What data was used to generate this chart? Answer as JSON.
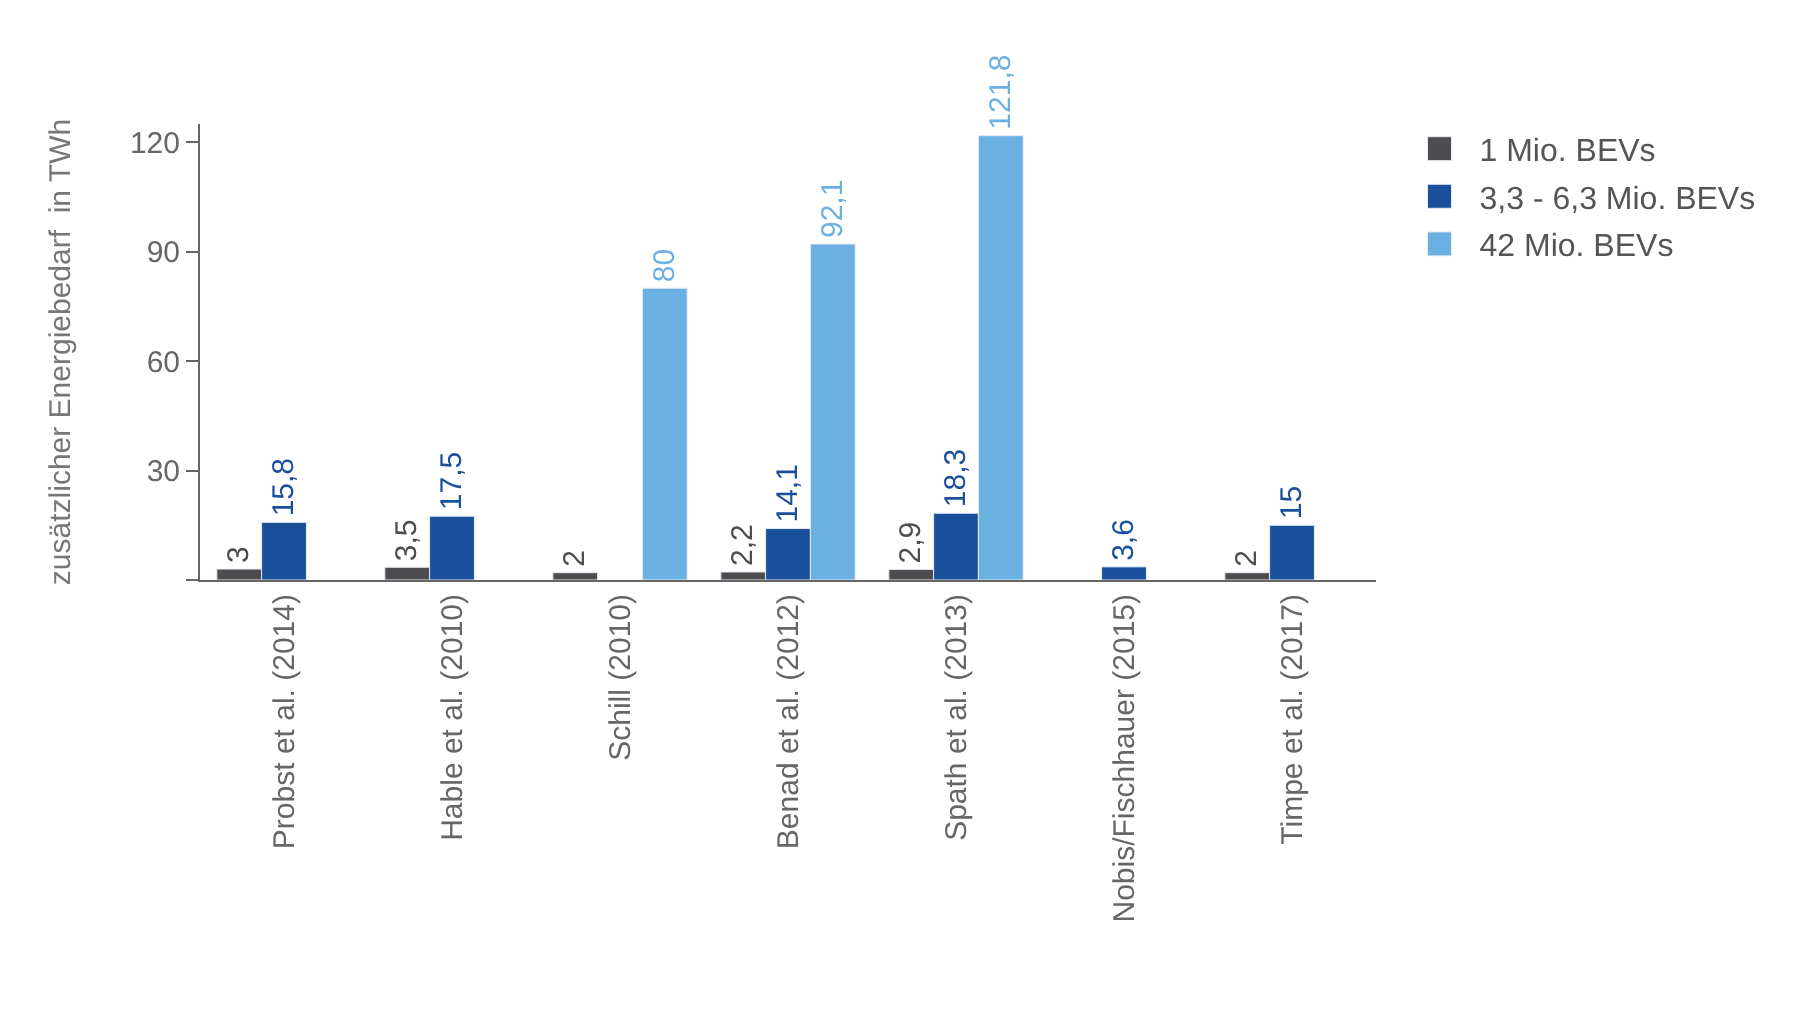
{
  "chart_data": {
    "type": "bar",
    "ylabel": "zusätzlicher Energiebedarf  in TWh",
    "categories": [
      "Probst et al. (2014)",
      "Hable et al. (2010)",
      "Schill (2010)",
      "Benad et al. (2012)",
      "Spath et al. (2013)",
      "Nobis/Fischhauer (2015)",
      "Timpe et al. (2017)"
    ],
    "series": [
      {
        "name": "1 Mio. BEVs",
        "color": "#4d4d4f",
        "values": [
          3,
          3.5,
          2,
          2.2,
          2.9,
          null,
          2
        ],
        "value_labels": [
          "3",
          "3,5",
          "2",
          "2,2",
          "2,9",
          null,
          "2"
        ]
      },
      {
        "name": "3,3 - 6,3 Mio. BEVs",
        "color": "#1a4f9c",
        "values": [
          15.8,
          17.5,
          null,
          14.1,
          18.3,
          3.6,
          15
        ],
        "value_labels": [
          "15,8",
          "17,5",
          null,
          "14,1",
          "18,3",
          "3,6",
          "15"
        ]
      },
      {
        "name": "42 Mio. BEVs",
        "color": "#6ab0e0",
        "values": [
          null,
          null,
          80,
          92.1,
          121.8,
          null,
          null
        ],
        "value_labels": [
          null,
          null,
          "80",
          "92,1",
          "121,8",
          null,
          null
        ]
      }
    ],
    "ylim": [
      0,
      125
    ],
    "yticks": [
      {
        "value": 0,
        "label": null
      },
      30,
      60,
      90,
      120
    ],
    "legend": "top right"
  }
}
